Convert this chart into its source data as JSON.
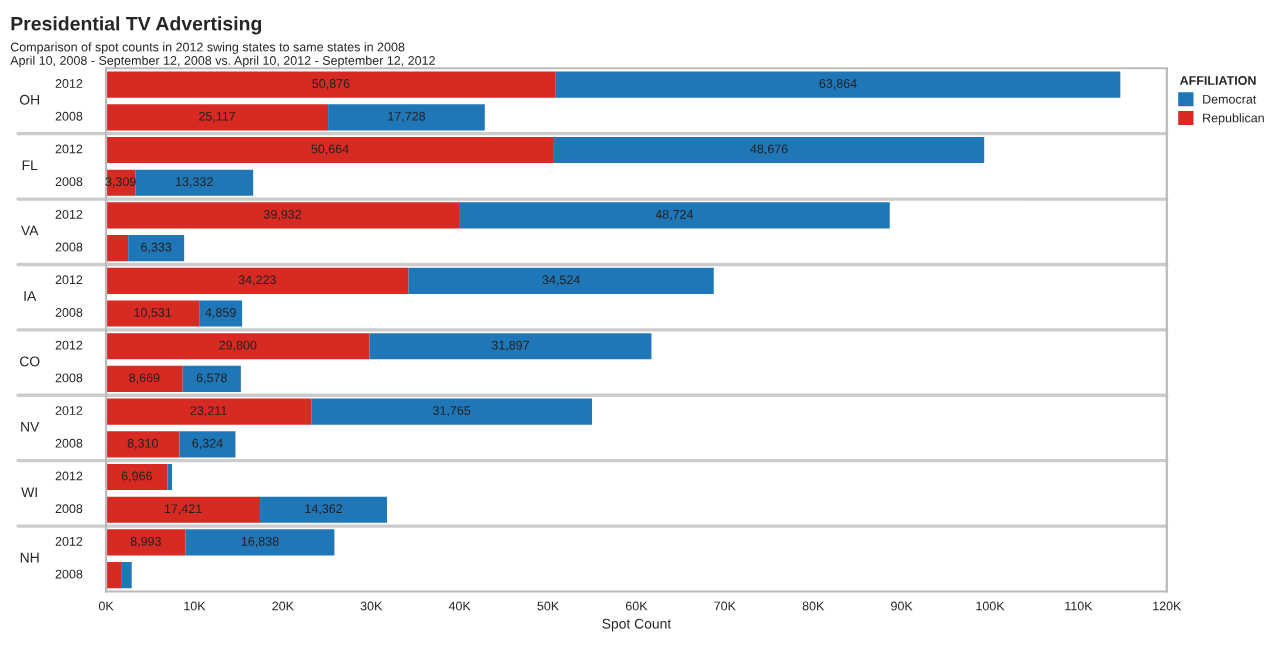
{
  "chart_data": {
    "type": "bar",
    "orientation": "horizontal",
    "stacked": true,
    "title": "Presidential TV Advertising",
    "subtitle": "Comparison of spot counts in 2012 swing states to same states in 2008\nApril 10, 2008 - September 12, 2008 vs. April 10, 2012 - September 12, 2012",
    "annotations": [
      "OH",
      "FL",
      "VA",
      "IA",
      "CO",
      "NV",
      "WI",
      "NH"
    ],
    "categories": [
      "2012",
      "2008",
      "2012",
      "2008",
      "2012",
      "2008",
      "2012",
      "2008",
      "2012",
      "2008",
      "2012",
      "2008",
      "2012",
      "2008",
      "2012",
      "2008"
    ],
    "series": [
      {
        "name": "Republican",
        "color": "#d62a22",
        "values": [
          50876,
          25117,
          50664,
          3309,
          39932,
          2500,
          34223,
          10531,
          29800,
          8669,
          23211,
          8310,
          6966,
          17421,
          8993,
          1700
        ],
        "value_labels": [
          "50,876",
          "25,117",
          "50,664",
          "3,309",
          "39,932",
          null,
          "34,223",
          "10,531",
          "29,800",
          "8,669",
          "23,211",
          "8,310",
          "6,966",
          "17,421",
          "8,993",
          null
        ]
      },
      {
        "name": "Democrat",
        "color": "#1f77b8",
        "values": [
          63864,
          17728,
          48676,
          13332,
          48724,
          6333,
          34524,
          4859,
          31897,
          6578,
          31765,
          6324,
          500,
          14362,
          16838,
          1200
        ],
        "value_labels": [
          "63,864",
          "17,728",
          "48,676",
          "13,332",
          "48,724",
          "6,333",
          "34,524",
          "4,859",
          "31,897",
          "6,578",
          "31,765",
          "6,324",
          null,
          "14,362",
          "16,838",
          null
        ]
      }
    ],
    "xlabel": "Spot Count",
    "legend_title": "AFFILIATION",
    "legend": "top right",
    "xlim": [
      0,
      120000
    ],
    "xticks": [
      {
        "value": 0,
        "label": "0K"
      },
      {
        "value": 10000,
        "label": "10K"
      },
      {
        "value": 20000,
        "label": "20K"
      },
      {
        "value": 30000,
        "label": "30K"
      },
      {
        "value": 40000,
        "label": "40K"
      },
      {
        "value": 50000,
        "label": "50K"
      },
      {
        "value": 60000,
        "label": "60K"
      },
      {
        "value": 70000,
        "label": "70K"
      },
      {
        "value": 80000,
        "label": "80K"
      },
      {
        "value": 90000,
        "label": "90K"
      },
      {
        "value": 100000,
        "label": "100K"
      },
      {
        "value": 110000,
        "label": "110K"
      },
      {
        "value": 120000,
        "label": "120K"
      }
    ],
    "grid": false
  }
}
